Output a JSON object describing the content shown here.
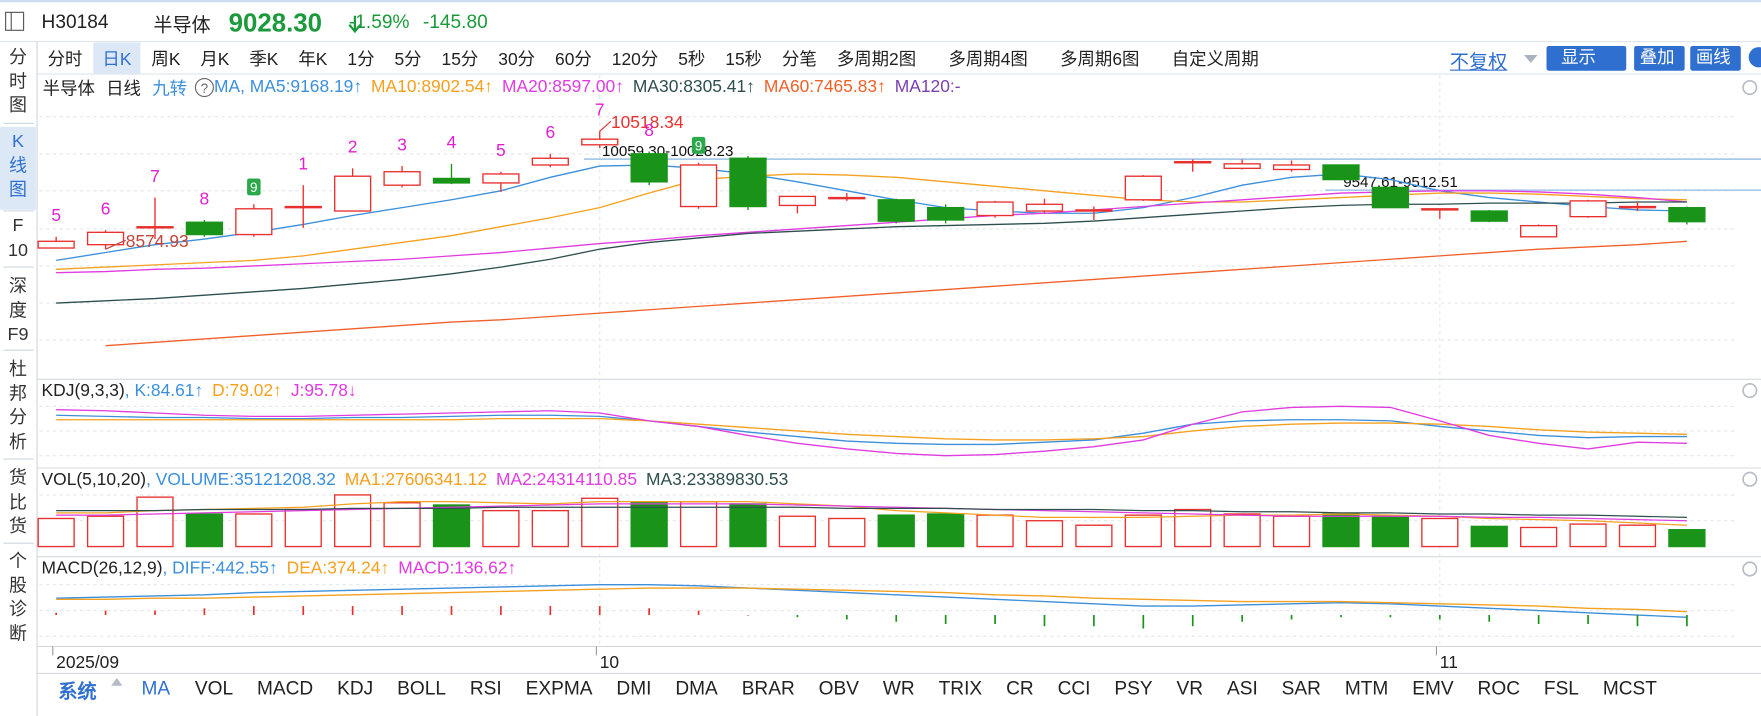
{
  "header": {
    "code": "H30184",
    "name": "半导体",
    "price": "9028.30",
    "change_pct": "-1.59%",
    "change": "-145.80"
  },
  "side_tabs": [
    [
      "分",
      "时",
      "图"
    ],
    [
      "K",
      "线",
      "图"
    ],
    [
      "F",
      "10"
    ],
    [
      "深",
      "度",
      "F9"
    ],
    [
      "杜",
      "邦",
      "分",
      "析"
    ],
    [
      "货",
      "比",
      "货"
    ],
    [
      "个",
      "股",
      "诊",
      "断"
    ]
  ],
  "selected_side_tab": 1,
  "period_tabs": [
    "分时",
    "日K",
    "周K",
    "月K",
    "季K",
    "年K",
    "1分",
    "5分",
    "15分",
    "30分",
    "60分",
    "120分",
    "5秒",
    "15秒",
    "分笔",
    "多周期2图",
    "多周期4图",
    "多周期6图",
    "自定义周期"
  ],
  "selected_period": 1,
  "toolbar": {
    "adjust": "不复权",
    "buttons": [
      "显示",
      "叠加",
      "画线"
    ]
  },
  "indicator_tabs": {
    "group": "系统",
    "items": [
      "MA",
      "VOL",
      "MACD",
      "KDJ",
      "BOLL",
      "RSI",
      "EXPMA",
      "DMI",
      "DMA",
      "BRAR",
      "OBV",
      "WR",
      "TRIX",
      "CR",
      "CCI",
      "PSY",
      "VR",
      "ASI",
      "SAR",
      "MTM",
      "EMV",
      "ROC",
      "FSL",
      "MCST"
    ],
    "selected": 0
  },
  "chart_data": [
    {
      "type": "candlestick",
      "title": "半导体",
      "period": "日线",
      "overlay": "九转",
      "ma_group": "MA",
      "up_color": "#e8312f",
      "down_color": "#199419",
      "categories": [
        "2025/09",
        null,
        null,
        null,
        null,
        null,
        null,
        null,
        null,
        null,
        null,
        "10",
        null,
        null,
        null,
        null,
        null,
        null,
        null,
        null,
        null,
        null,
        null,
        null,
        null,
        null,
        null,
        null,
        "11",
        null,
        null,
        null,
        null,
        null
      ],
      "open": [
        8594,
        8649,
        8927,
        9019,
        8816,
        9259,
        9204,
        9630,
        9741,
        9667,
        9963,
        10296,
        10148,
        9278,
        10074,
        9296,
        9408,
        9389,
        9260,
        9130,
        9204,
        9204,
        9389,
        10000,
        9908,
        9889,
        9963,
        9593,
        9222,
        9204,
        8779,
        9111,
        9259,
        9259
      ],
      "close": [
        8705,
        8853,
        8945,
        8816,
        9241,
        9278,
        9778,
        9852,
        9667,
        9815,
        10074,
        10389,
        9685,
        9963,
        9278,
        9445,
        9426,
        9037,
        9056,
        9352,
        9315,
        9222,
        9778,
        10018,
        9982,
        9963,
        9722,
        9260,
        9241,
        9037,
        8963,
        9371,
        9278,
        9028.3
      ],
      "high": [
        8779,
        8890,
        9426,
        9056,
        9315,
        9630,
        9908,
        9945,
        9982,
        9852,
        10148,
        10518.34,
        10185,
        10000,
        10111,
        9445,
        9500,
        9408,
        9315,
        9371,
        9408,
        9278,
        9796,
        10055,
        10055,
        10037,
        9963,
        9611,
        9241,
        9222,
        8982,
        9389,
        9352,
        9278
      ],
      "low": [
        8590,
        8574.93,
        8742,
        8779,
        8779,
        8927,
        9204,
        9593,
        9648,
        9519,
        9926,
        10241,
        9630,
        9241,
        9222,
        9167,
        9371,
        9000,
        9000,
        9093,
        9167,
        9056,
        9371,
        9852,
        9889,
        9852,
        9713,
        9259,
        9074,
        9019,
        8779,
        9093,
        9204,
        8982
      ],
      "td_counts": [
        5,
        6,
        7,
        8,
        9,
        1,
        2,
        3,
        4,
        5,
        6,
        7,
        8,
        9,
        null,
        null,
        null,
        null,
        null,
        null,
        null,
        null,
        null,
        null,
        null,
        null,
        null,
        null,
        null,
        null,
        null,
        null,
        null,
        null
      ],
      "high_labels": [
        null,
        null,
        null,
        null,
        null,
        null,
        null,
        null,
        null,
        null,
        null,
        "10518.34",
        null,
        null,
        null,
        null,
        null,
        null,
        null,
        null,
        null,
        null,
        null,
        null,
        null,
        null,
        null,
        null,
        null,
        null,
        null,
        null,
        null,
        null
      ],
      "low_labels": [
        null,
        "8574.93",
        null,
        null,
        null,
        null,
        null,
        null,
        null,
        null,
        null,
        null,
        null,
        null,
        null,
        null,
        null,
        null,
        null,
        null,
        null,
        null,
        null,
        null,
        null,
        null,
        null,
        null,
        null,
        null,
        null,
        null,
        null,
        null
      ],
      "ref_line_labels": [
        null,
        null,
        null,
        null,
        null,
        null,
        null,
        null,
        null,
        null,
        null,
        "10059.30-10028.23",
        null,
        null,
        null,
        null,
        null,
        null,
        null,
        null,
        null,
        null,
        null,
        null,
        null,
        null,
        "9547.61-9512.51",
        null,
        null,
        null,
        null,
        null,
        null,
        null
      ],
      "ref_line_values": [
        null,
        null,
        null,
        null,
        null,
        null,
        null,
        null,
        null,
        null,
        null,
        10059.3,
        null,
        null,
        null,
        null,
        null,
        null,
        null,
        null,
        null,
        null,
        null,
        null,
        null,
        null,
        9547.61,
        null,
        null,
        null,
        null,
        null,
        null,
        null
      ],
      "series": [
        {
          "name": ", MA5:9168.19↑",
          "color": "#3c8fdb",
          "values": [
            8390,
            8520,
            8649,
            8741,
            8853,
            8982,
            9130,
            9260,
            9389,
            9537,
            9759,
            9944,
            9963,
            9907,
            9815,
            9685,
            9537,
            9389,
            9260,
            9204,
            9167,
            9167,
            9260,
            9426,
            9630,
            9759,
            9815,
            9722,
            9537,
            9426,
            9352,
            9278,
            9222,
            9204
          ]
        },
        {
          "name": "MA10:8902.54↑",
          "color": "#f5a11f",
          "values": [
            8242,
            8279,
            8316,
            8353,
            8390,
            8464,
            8575,
            8686,
            8797,
            8945,
            9093,
            9260,
            9500,
            9722,
            9778,
            9815,
            9796,
            9759,
            9685,
            9611,
            9537,
            9463,
            9389,
            9352,
            9352,
            9389,
            9426,
            9463,
            9500,
            9500,
            9482,
            9445,
            9408,
            9389
          ]
        },
        {
          "name": "MA20:8597.00↑",
          "color": "#e03ce0",
          "values": [
            8187,
            8205,
            8242,
            8260,
            8297,
            8334,
            8371,
            8408,
            8464,
            8520,
            8594,
            8667,
            8723,
            8797,
            8853,
            8908,
            8964,
            9019,
            9075,
            9130,
            9167,
            9223,
            9278,
            9334,
            9389,
            9445,
            9500,
            9519,
            9537,
            9537,
            9519,
            9482,
            9426,
            9352
          ]
        },
        {
          "name": "MA30:8305.41↑",
          "color": "#2f4f4f",
          "values": [
            7687,
            7724,
            7761,
            7817,
            7872,
            7928,
            8002,
            8076,
            8168,
            8279,
            8408,
            8575,
            8686,
            8760,
            8834,
            8871,
            8908,
            8945,
            8964,
            8982,
            9001,
            9038,
            9093,
            9149,
            9204,
            9260,
            9297,
            9315,
            9315,
            9334,
            9334,
            9334,
            9352,
            9352
          ]
        },
        {
          "name": "MA60:7465.83↑",
          "color": "#f0612a",
          "values": [
            null,
            6984,
            7040,
            7095,
            7151,
            7206,
            7262,
            7317,
            7373,
            7410,
            7465,
            7521,
            7576,
            7632,
            7687,
            7743,
            7798,
            7854,
            7909,
            7965,
            8020,
            8076,
            8131,
            8187,
            8242,
            8298,
            8353,
            8409,
            8464,
            8520,
            8575,
            8612,
            8649,
            8705
          ]
        },
        {
          "name": "MA120:-",
          "color": "#7a3fb0",
          "values": [
            null,
            null,
            null,
            null,
            null,
            null,
            null,
            null,
            null,
            null,
            null,
            null,
            null,
            null,
            null,
            null,
            null,
            null,
            null,
            null,
            null,
            null,
            null,
            null,
            null,
            null,
            null,
            null,
            null,
            null,
            null,
            null,
            null,
            null
          ]
        }
      ]
    },
    {
      "type": "line",
      "title": "KDJ(9,3,3)",
      "series": [
        {
          "name": ", K:84.61↑",
          "color": "#3c8fdb",
          "values": [
            80,
            78,
            76,
            76,
            74,
            74,
            76,
            76,
            78,
            80,
            80,
            78,
            70,
            60,
            50,
            42,
            34,
            30,
            28,
            28,
            32,
            36,
            48,
            64,
            70,
            72,
            72,
            70,
            60,
            52,
            44,
            40,
            42,
            42
          ]
        },
        {
          "name": "D:79.02↑",
          "color": "#f5a11f",
          "values": [
            72,
            72,
            72,
            72,
            72,
            72,
            72,
            72,
            72,
            74,
            74,
            74,
            70,
            64,
            58,
            52,
            46,
            42,
            38,
            36,
            36,
            38,
            42,
            52,
            60,
            64,
            66,
            66,
            64,
            60,
            54,
            50,
            48,
            46
          ]
        },
        {
          "name": "J:95.78↓",
          "color": "#e03ce0",
          "values": [
            90,
            88,
            84,
            80,
            78,
            78,
            80,
            82,
            84,
            86,
            88,
            84,
            70,
            60,
            44,
            30,
            20,
            12,
            8,
            10,
            16,
            24,
            36,
            64,
            86,
            94,
            96,
            94,
            70,
            44,
            30,
            20,
            32,
            30
          ]
        }
      ]
    },
    {
      "type": "bar",
      "title": "VOL(5,10,20)",
      "name": ", VOLUME:35121208.32",
      "color": "#3c8fdb",
      "values": [
        58500000,
        63200000,
        103000000,
        67900000,
        67900000,
        77200000,
        107600000,
        91300000,
        86600000,
        74900000,
        74900000,
        100600000,
        93600000,
        93600000,
        88900000,
        63200000,
        58500000,
        65500000,
        67900000,
        65500000,
        53800000,
        44500000,
        65500000,
        77200000,
        67900000,
        63200000,
        67900000,
        63200000,
        58500000,
        42100000,
        39800000,
        46800000,
        44500000,
        35121208.32
      ],
      "series": [
        {
          "name": "MA1:27606341.12",
          "color": "#f5a11f",
          "values": [
            70200000,
            70200000,
            74900000,
            77200000,
            79600000,
            81900000,
            88900000,
            93600000,
            93600000,
            91300000,
            88900000,
            93600000,
            93600000,
            93600000,
            93600000,
            88900000,
            84200000,
            74900000,
            70200000,
            65500000,
            60800000,
            60800000,
            60800000,
            63200000,
            65500000,
            65500000,
            67900000,
            65500000,
            63200000,
            58500000,
            56200000,
            53800000,
            49100000,
            44500000
          ]
        },
        {
          "name": "MA2:24314110.85",
          "color": "#e03ce0",
          "values": [
            65500000,
            65500000,
            67900000,
            70200000,
            72500000,
            74900000,
            77200000,
            79600000,
            81900000,
            84200000,
            86600000,
            88900000,
            88900000,
            88900000,
            88900000,
            86600000,
            84200000,
            81900000,
            79600000,
            77200000,
            74900000,
            72500000,
            70200000,
            67900000,
            65500000,
            63200000,
            63200000,
            63200000,
            63200000,
            60800000,
            60800000,
            58500000,
            56200000,
            53800000
          ]
        },
        {
          "name": "MA3:23389830.53",
          "color": "#2f4f4f",
          "values": [
            74900000,
            74900000,
            74900000,
            77200000,
            77200000,
            77200000,
            79600000,
            79600000,
            79600000,
            81900000,
            81900000,
            81900000,
            81900000,
            81900000,
            81900000,
            81900000,
            79600000,
            79600000,
            79600000,
            77200000,
            77200000,
            77200000,
            74900000,
            74900000,
            72500000,
            72500000,
            70200000,
            70200000,
            67900000,
            67900000,
            65500000,
            65500000,
            63200000,
            60800000
          ]
        }
      ]
    },
    {
      "type": "line",
      "title": "MACD(26,12,9)",
      "up_color": "#e8312f",
      "down_color": "#199419",
      "series": [
        {
          "name": ", DIFF:442.55↑",
          "color": "#3c8fdb",
          "values": [
            300,
            320,
            340,
            360,
            400,
            420,
            440,
            460,
            480,
            500,
            520,
            540,
            540,
            520,
            480,
            440,
            400,
            360,
            320,
            280,
            240,
            200,
            160,
            160,
            180,
            200,
            220,
            200,
            160,
            120,
            80,
            40,
            0,
            -40
          ]
        },
        {
          "name": "DEA:374.24↑",
          "color": "#f5a11f",
          "values": [
            280,
            280,
            300,
            300,
            320,
            340,
            360,
            380,
            400,
            420,
            440,
            460,
            480,
            480,
            480,
            460,
            440,
            420,
            400,
            360,
            340,
            300,
            280,
            260,
            240,
            240,
            240,
            220,
            200,
            180,
            160,
            120,
            100,
            60
          ]
        },
        {
          "name": "MACD:136.62↑",
          "color": "#e03ce0",
          "style": "bar",
          "values": [
            40,
            80,
            80,
            120,
            160,
            160,
            160,
            160,
            160,
            160,
            160,
            160,
            120,
            80,
            0,
            -40,
            -80,
            -120,
            -160,
            -160,
            -200,
            -200,
            -240,
            -200,
            -120,
            -80,
            -40,
            -40,
            -80,
            -120,
            -160,
            -160,
            -200,
            -200
          ]
        }
      ]
    }
  ]
}
